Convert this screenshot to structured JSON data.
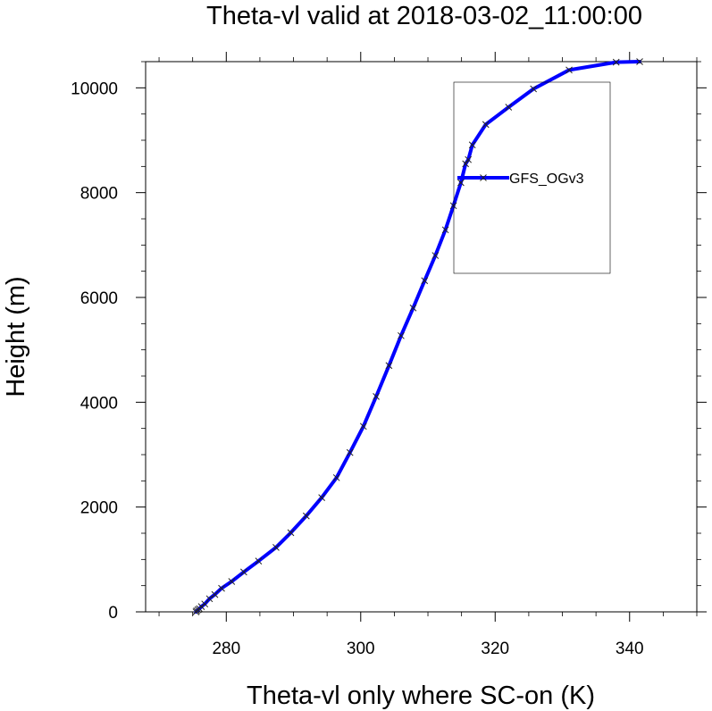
{
  "chart_data": {
    "type": "line",
    "title": "Theta-vl valid at 2018-03-02_11:00:00",
    "xlabel": "Theta-vl only where SC-on (K)",
    "ylabel": "Height (m)",
    "xlim": [
      268,
      350
    ],
    "ylim": [
      0,
      10500
    ],
    "xticks": [
      280,
      300,
      320,
      340
    ],
    "yticks": [
      0,
      2000,
      4000,
      6000,
      8000,
      10000
    ],
    "grid": false,
    "legend_position": "top-right",
    "series": [
      {
        "name": "GFS_OGv3",
        "color": "#0000ff",
        "marker": "x",
        "x": [
          275.5,
          275.6,
          275.8,
          276.0,
          276.3,
          276.8,
          277.5,
          278.3,
          279.3,
          280.8,
          282.6,
          284.8,
          287.4,
          289.6,
          291.9,
          294.2,
          296.4,
          298.4,
          300.4,
          302.3,
          304.2,
          306.0,
          307.8,
          309.5,
          311.1,
          312.6,
          313.8,
          314.9,
          315.6,
          316.0,
          316.6,
          318.6,
          322.0,
          325.7,
          331.0,
          338.0,
          341.5
        ],
        "y": [
          0,
          20,
          40,
          60,
          100,
          150,
          250,
          330,
          450,
          580,
          760,
          970,
          1230,
          1510,
          1830,
          2180,
          2560,
          3040,
          3540,
          4110,
          4700,
          5270,
          5800,
          6320,
          6800,
          7290,
          7750,
          8190,
          8550,
          8630,
          8910,
          9300,
          9630,
          9980,
          10340,
          10490,
          10500
        ]
      }
    ]
  }
}
